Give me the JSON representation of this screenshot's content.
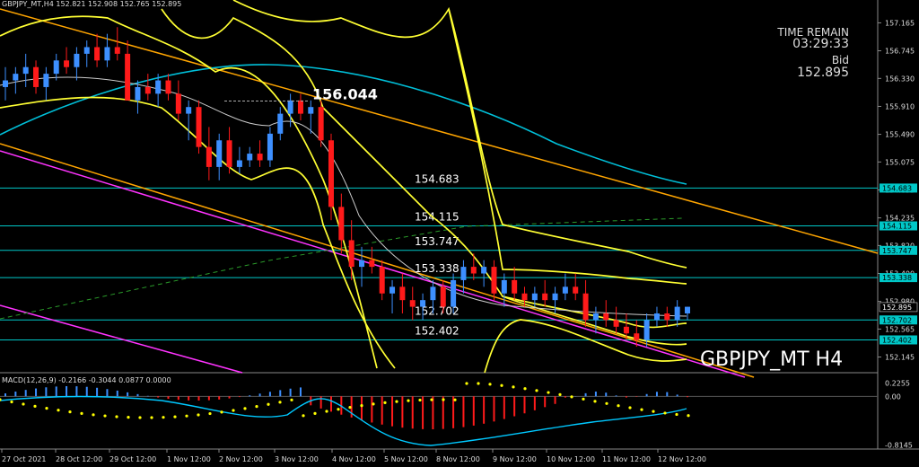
{
  "header": "GBPJPY_MT,H4  152.821 152.908 152.765 152.895",
  "info": {
    "time_remain_label": "TIME REMAIN",
    "time_remain": "03:29:33",
    "bid_label": "Bid",
    "bid": "152.895"
  },
  "symbol_label": "GBPJPY_MT H4",
  "macd_header": "MACD(12,26,9) -0.2166 -0.3044 0.0877 0.0000",
  "colors": {
    "bg": "#000000",
    "bull": "#3d8fff",
    "bear": "#ff1a1a",
    "level": "#00c8c8",
    "bb": "#ffff33",
    "trend": "#ffa500",
    "ma": "#00bfd8",
    "magenta": "#ff33ff"
  },
  "chart_data": {
    "type": "candlestick",
    "symbol": "GBPJPY_MT",
    "timeframe": "H4",
    "ylim": [
      151.95,
      157.4
    ],
    "y_ticks": [
      "157.165",
      "156.745",
      "156.330",
      "155.910",
      "155.490",
      "155.075",
      "154.655",
      "154.235",
      "153.820",
      "153.400",
      "152.980",
      "152.565",
      "152.145"
    ],
    "price_tags": [
      "154.683",
      "154.115",
      "153.747",
      "153.338",
      "152.895",
      "152.702",
      "152.402"
    ],
    "x_ticks": [
      "27 Oct 2021",
      "28 Oct 12:00",
      "29 Oct 12:00",
      "1 Nov 12:00",
      "2 Nov 12:00",
      "3 Nov 12:00",
      "4 Nov 12:00",
      "5 Nov 12:00",
      "8 Nov 12:00",
      "9 Nov 12:00",
      "10 Nov 12:00",
      "11 Nov 12:00",
      "12 Nov 12:00"
    ],
    "levels": [
      154.683,
      154.115,
      153.747,
      153.338,
      152.702,
      152.402
    ],
    "level_labels": [
      "154.683",
      "154.115",
      "153.747",
      "153.338",
      "152.702",
      "152.402"
    ],
    "high_label": {
      "text": "156.044",
      "value": 156.044
    },
    "current_price": 152.895,
    "candles": [
      [
        156.2,
        156.5,
        156.0,
        156.3
      ],
      [
        156.3,
        156.5,
        156.1,
        156.4
      ],
      [
        156.4,
        156.7,
        156.2,
        156.5
      ],
      [
        156.5,
        156.6,
        156.1,
        156.2
      ],
      [
        156.2,
        156.5,
        156.0,
        156.4
      ],
      [
        156.4,
        156.7,
        156.3,
        156.6
      ],
      [
        156.6,
        156.8,
        156.4,
        156.5
      ],
      [
        156.5,
        156.8,
        156.3,
        156.7
      ],
      [
        156.7,
        156.9,
        156.5,
        156.8
      ],
      [
        156.8,
        157.0,
        156.5,
        156.6
      ],
      [
        156.6,
        157.0,
        156.5,
        156.8
      ],
      [
        156.8,
        157.1,
        156.6,
        156.7
      ],
      [
        156.7,
        156.9,
        156.0,
        156.0
      ],
      [
        156.0,
        156.3,
        155.8,
        156.2
      ],
      [
        156.2,
        156.4,
        156.0,
        156.1
      ],
      [
        156.1,
        156.4,
        155.9,
        156.3
      ],
      [
        156.3,
        156.4,
        156.0,
        156.1
      ],
      [
        156.1,
        156.3,
        155.7,
        155.8
      ],
      [
        155.8,
        156.0,
        155.4,
        155.9
      ],
      [
        155.9,
        156.0,
        155.2,
        155.3
      ],
      [
        155.3,
        155.6,
        154.8,
        155.0
      ],
      [
        155.0,
        155.5,
        154.8,
        155.4
      ],
      [
        155.4,
        155.6,
        154.9,
        155.0
      ],
      [
        155.0,
        155.3,
        154.9,
        155.1
      ],
      [
        155.1,
        155.3,
        155.0,
        155.2
      ],
      [
        155.2,
        155.4,
        155.0,
        155.1
      ],
      [
        155.1,
        155.6,
        155.0,
        155.5
      ],
      [
        155.5,
        155.9,
        155.4,
        155.8
      ],
      [
        155.8,
        156.1,
        155.6,
        156.0
      ],
      [
        156.0,
        156.1,
        155.7,
        155.8
      ],
      [
        155.8,
        156.0,
        155.5,
        155.9
      ],
      [
        155.9,
        156.0,
        155.3,
        155.4
      ],
      [
        155.4,
        155.5,
        154.2,
        154.4
      ],
      [
        154.4,
        154.6,
        153.7,
        153.9
      ],
      [
        153.9,
        154.2,
        153.3,
        153.5
      ],
      [
        153.5,
        153.8,
        153.2,
        153.6
      ],
      [
        153.6,
        153.8,
        153.4,
        153.5
      ],
      [
        153.5,
        153.6,
        153.0,
        153.1
      ],
      [
        153.1,
        153.3,
        152.8,
        153.2
      ],
      [
        153.2,
        153.4,
        152.8,
        153.0
      ],
      [
        153.0,
        153.2,
        152.7,
        152.9
      ],
      [
        152.9,
        153.1,
        152.7,
        153.0
      ],
      [
        153.0,
        153.3,
        152.8,
        153.2
      ],
      [
        153.2,
        153.3,
        152.8,
        152.9
      ],
      [
        152.9,
        153.4,
        152.8,
        153.3
      ],
      [
        153.3,
        153.6,
        153.1,
        153.5
      ],
      [
        153.5,
        153.7,
        153.3,
        153.4
      ],
      [
        153.4,
        153.6,
        153.2,
        153.5
      ],
      [
        153.5,
        153.6,
        153.0,
        153.1
      ],
      [
        153.1,
        153.4,
        152.9,
        153.3
      ],
      [
        153.3,
        153.5,
        153.0,
        153.1
      ],
      [
        153.1,
        153.2,
        152.9,
        153.0
      ],
      [
        153.0,
        153.2,
        152.9,
        153.1
      ],
      [
        153.1,
        153.3,
        152.9,
        153.0
      ],
      [
        153.0,
        153.2,
        152.8,
        153.1
      ],
      [
        153.1,
        153.4,
        153.0,
        153.2
      ],
      [
        153.2,
        153.4,
        153.0,
        153.1
      ],
      [
        153.1,
        153.3,
        152.6,
        152.7
      ],
      [
        152.7,
        152.9,
        152.5,
        152.8
      ],
      [
        152.8,
        153.0,
        152.6,
        152.7
      ],
      [
        152.7,
        152.9,
        152.5,
        152.6
      ],
      [
        152.6,
        152.8,
        152.4,
        152.5
      ],
      [
        152.5,
        152.7,
        152.3,
        152.4
      ],
      [
        152.4,
        152.8,
        152.3,
        152.7
      ],
      [
        152.7,
        152.9,
        152.6,
        152.8
      ],
      [
        152.8,
        152.9,
        152.6,
        152.7
      ],
      [
        152.7,
        153.0,
        152.6,
        152.9
      ],
      [
        152.8,
        152.9,
        152.7,
        152.9
      ]
    ],
    "indicators": [
      "Bollinger Bands",
      "Moving Average",
      "Trendlines"
    ],
    "macd": {
      "params": "12,26,9",
      "values": [
        -0.2166,
        -0.3044,
        0.0877,
        0.0
      ],
      "ylim": [
        -0.85,
        0.26
      ],
      "ticks": [
        "0.2255",
        "0.00",
        "-0.8145"
      ]
    }
  }
}
